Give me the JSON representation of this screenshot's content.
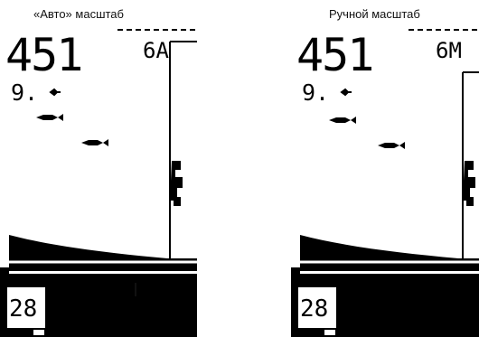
{
  "screens": [
    {
      "caption": "«Авто» масштаб",
      "depth": "451",
      "scale": "6A",
      "fish_depth": "9.",
      "bottom_depth": "28",
      "fish_count": 2
    },
    {
      "caption": "Ручной масштаб",
      "depth": "451",
      "scale": "6M",
      "fish_depth": "9.",
      "bottom_depth": "28",
      "fish_count": 2
    }
  ]
}
